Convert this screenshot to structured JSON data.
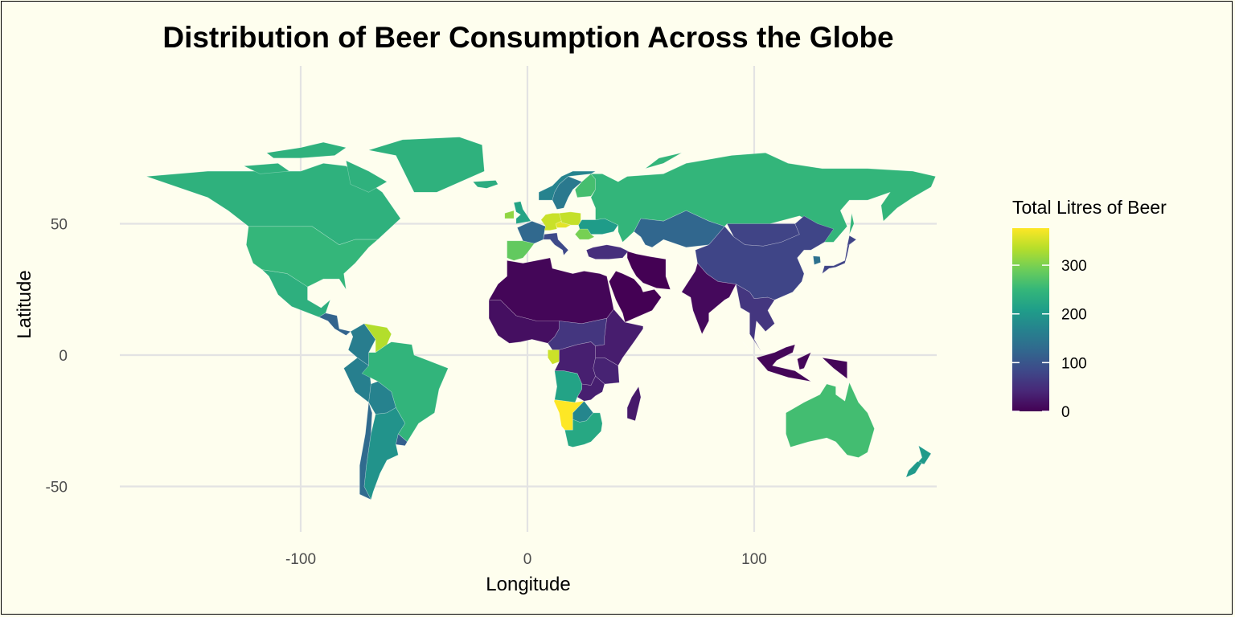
{
  "chart_data": {
    "type": "map",
    "title": "Distribution of Beer Consumption Across the Globe",
    "xlabel": "Longitude",
    "ylabel": "Latitude",
    "xlim": [
      -180,
      180
    ],
    "ylim": [
      -60,
      84
    ],
    "x_ticks": [
      -100,
      0,
      100
    ],
    "y_ticks": [
      50,
      0,
      -50
    ],
    "x_tick_labels": [
      "-100",
      "0",
      "100"
    ],
    "y_tick_labels": [
      "50",
      "0",
      "-50"
    ],
    "grid": true,
    "legend": {
      "title": "Total Litres of Beer",
      "position": "right",
      "colormap": "viridis",
      "range": [
        0,
        376
      ],
      "ticks": [
        0,
        100,
        200,
        300
      ],
      "tick_labels": [
        "0",
        "100",
        "200",
        "300"
      ]
    },
    "regions": [
      {
        "name": "Canada",
        "value": 240,
        "lon": -100,
        "lat": 60
      },
      {
        "name": "United States",
        "value": 249,
        "lon": -100,
        "lat": 40
      },
      {
        "name": "Mexico",
        "value": 238,
        "lon": -102,
        "lat": 23
      },
      {
        "name": "Greenland",
        "value": 240,
        "lon": -42,
        "lat": 72
      },
      {
        "name": "Central America",
        "value": 120,
        "lon": -86,
        "lat": 14
      },
      {
        "name": "Colombia",
        "value": 159,
        "lon": -74,
        "lat": 4
      },
      {
        "name": "Venezuela",
        "value": 333,
        "lon": -66,
        "lat": 7
      },
      {
        "name": "Peru",
        "value": 163,
        "lon": -75,
        "lat": -9
      },
      {
        "name": "Brazil",
        "value": 245,
        "lon": -52,
        "lat": -10
      },
      {
        "name": "Bolivia",
        "value": 167,
        "lon": -64,
        "lat": -17
      },
      {
        "name": "Chile",
        "value": 130,
        "lon": -71,
        "lat": -30
      },
      {
        "name": "Argentina",
        "value": 193,
        "lon": -64,
        "lat": -36
      },
      {
        "name": "Uruguay",
        "value": 115,
        "lon": -56,
        "lat": -33
      },
      {
        "name": "Iceland",
        "value": 233,
        "lon": -19,
        "lat": 65
      },
      {
        "name": "Ireland",
        "value": 313,
        "lon": -8,
        "lat": 53
      },
      {
        "name": "United Kingdom",
        "value": 219,
        "lon": -2,
        "lat": 54
      },
      {
        "name": "Spain",
        "value": 284,
        "lon": -4,
        "lat": 40
      },
      {
        "name": "France",
        "value": 127,
        "lon": 2,
        "lat": 46
      },
      {
        "name": "Germany",
        "value": 346,
        "lon": 10,
        "lat": 51
      },
      {
        "name": "Poland",
        "value": 343,
        "lon": 19,
        "lat": 52
      },
      {
        "name": "Czech Republic",
        "value": 361,
        "lon": 15,
        "lat": 49.8
      },
      {
        "name": "Italy",
        "value": 85,
        "lon": 12,
        "lat": 43
      },
      {
        "name": "Norway",
        "value": 169,
        "lon": 10,
        "lat": 62
      },
      {
        "name": "Sweden",
        "value": 152,
        "lon": 16,
        "lat": 62
      },
      {
        "name": "Finland",
        "value": 263,
        "lon": 26,
        "lat": 64
      },
      {
        "name": "Romania",
        "value": 297,
        "lon": 25,
        "lat": 46
      },
      {
        "name": "Ukraine",
        "value": 206,
        "lon": 31,
        "lat": 49
      },
      {
        "name": "Turkey",
        "value": 51,
        "lon": 35,
        "lat": 39
      },
      {
        "name": "Russia",
        "value": 247,
        "lon": 95,
        "lat": 62
      },
      {
        "name": "Kazakhstan",
        "value": 124,
        "lon": 68,
        "lat": 48
      },
      {
        "name": "Mongolia",
        "value": 77,
        "lon": 103,
        "lat": 47
      },
      {
        "name": "China",
        "value": 79,
        "lon": 104,
        "lat": 35
      },
      {
        "name": "South Korea",
        "value": 140,
        "lon": 128,
        "lat": 36
      },
      {
        "name": "Japan",
        "value": 77,
        "lon": 138,
        "lat": 36
      },
      {
        "name": "Iran",
        "value": 0,
        "lon": 53,
        "lat": 32
      },
      {
        "name": "Saudi Arabia",
        "value": 0,
        "lon": 45,
        "lat": 24
      },
      {
        "name": "India",
        "value": 9,
        "lon": 79,
        "lat": 22
      },
      {
        "name": "Southeast Asia",
        "value": 60,
        "lon": 102,
        "lat": 15
      },
      {
        "name": "Indonesia",
        "value": 5,
        "lon": 115,
        "lat": -2
      },
      {
        "name": "North Africa",
        "value": 5,
        "lon": 10,
        "lat": 24
      },
      {
        "name": "West Africa",
        "value": 15,
        "lon": -5,
        "lat": 12
      },
      {
        "name": "Central Africa",
        "value": 60,
        "lon": 22,
        "lat": 5
      },
      {
        "name": "Gabon",
        "value": 347,
        "lon": 11.5,
        "lat": -0.8
      },
      {
        "name": "East Africa",
        "value": 30,
        "lon": 36,
        "lat": 2
      },
      {
        "name": "DR Congo",
        "value": 32,
        "lon": 24,
        "lat": -3
      },
      {
        "name": "Angola",
        "value": 217,
        "lon": 18,
        "lat": -12
      },
      {
        "name": "Tanzania",
        "value": 36,
        "lon": 35,
        "lat": -6
      },
      {
        "name": "Namibia",
        "value": 376,
        "lon": 18,
        "lat": -22
      },
      {
        "name": "Botswana",
        "value": 173,
        "lon": 24,
        "lat": -22
      },
      {
        "name": "Zambia",
        "value": 32,
        "lon": 27,
        "lat": -14
      },
      {
        "name": "South Africa",
        "value": 225,
        "lon": 25,
        "lat": -30
      },
      {
        "name": "Madagascar",
        "value": 26,
        "lon": 47,
        "lat": -19
      },
      {
        "name": "Australia",
        "value": 261,
        "lon": 134,
        "lat": -25
      },
      {
        "name": "New Zealand",
        "value": 203,
        "lon": 172,
        "lat": -41
      }
    ]
  }
}
